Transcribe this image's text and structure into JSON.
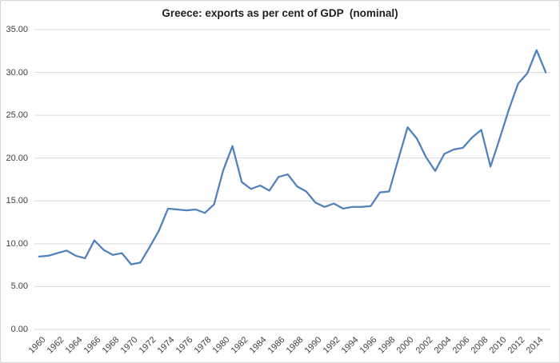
{
  "chart": {
    "title": "Greece: exports as per cent of GDP  (nominal)",
    "colors": {
      "line": "#4f81bd",
      "gridline": "#d9d9d9",
      "axis_line": "#d9d9d9",
      "tick_label": "#3f3f3f",
      "title": "#1f1f1f",
      "border": "#d4d4d4",
      "background": "#ffffff"
    },
    "y_tick_labels": [
      "35.00",
      "30.00",
      "25.00",
      "20.00",
      "15.00",
      "10.00",
      "5.00",
      "0.00"
    ],
    "x_tick_labels": [
      "1960",
      "1962",
      "1964",
      "1966",
      "1968",
      "1970",
      "1972",
      "1974",
      "1976",
      "1978",
      "1980",
      "1982",
      "1984",
      "1986",
      "1988",
      "1990",
      "1992",
      "1994",
      "1996",
      "1998",
      "2000",
      "2002",
      "2004",
      "2006",
      "2008",
      "2010",
      "2012",
      "2014"
    ]
  },
  "chart_data": {
    "type": "line",
    "title": "Greece: exports as per cent of GDP  (nominal)",
    "xlabel": "",
    "ylabel": "",
    "ylim": [
      0,
      35
    ],
    "y_tick_step": 5,
    "grid": true,
    "legend": false,
    "x": [
      1960,
      1961,
      1962,
      1963,
      1964,
      1965,
      1966,
      1967,
      1968,
      1969,
      1970,
      1971,
      1972,
      1973,
      1974,
      1975,
      1976,
      1977,
      1978,
      1979,
      1980,
      1981,
      1982,
      1983,
      1984,
      1985,
      1986,
      1987,
      1988,
      1989,
      1990,
      1991,
      1992,
      1993,
      1994,
      1995,
      1996,
      1997,
      1998,
      1999,
      2000,
      2001,
      2002,
      2003,
      2004,
      2005,
      2006,
      2007,
      2008,
      2009,
      2010,
      2011,
      2012,
      2013,
      2014,
      2015
    ],
    "values": [
      8.5,
      8.6,
      8.9,
      9.2,
      8.6,
      8.3,
      10.4,
      9.3,
      8.7,
      8.9,
      7.6,
      7.8,
      9.6,
      11.5,
      14.1,
      14.0,
      13.9,
      14.0,
      13.6,
      14.6,
      18.6,
      21.4,
      17.2,
      16.4,
      16.8,
      16.2,
      17.8,
      18.1,
      16.7,
      16.1,
      14.8,
      14.3,
      14.7,
      14.1,
      14.3,
      14.3,
      14.4,
      16.0,
      16.1,
      19.9,
      23.6,
      22.3,
      20.1,
      18.5,
      20.5,
      21.0,
      21.2,
      22.4,
      23.3,
      19.0,
      22.3,
      25.7,
      28.7,
      29.9,
      32.6,
      30.0
    ]
  }
}
